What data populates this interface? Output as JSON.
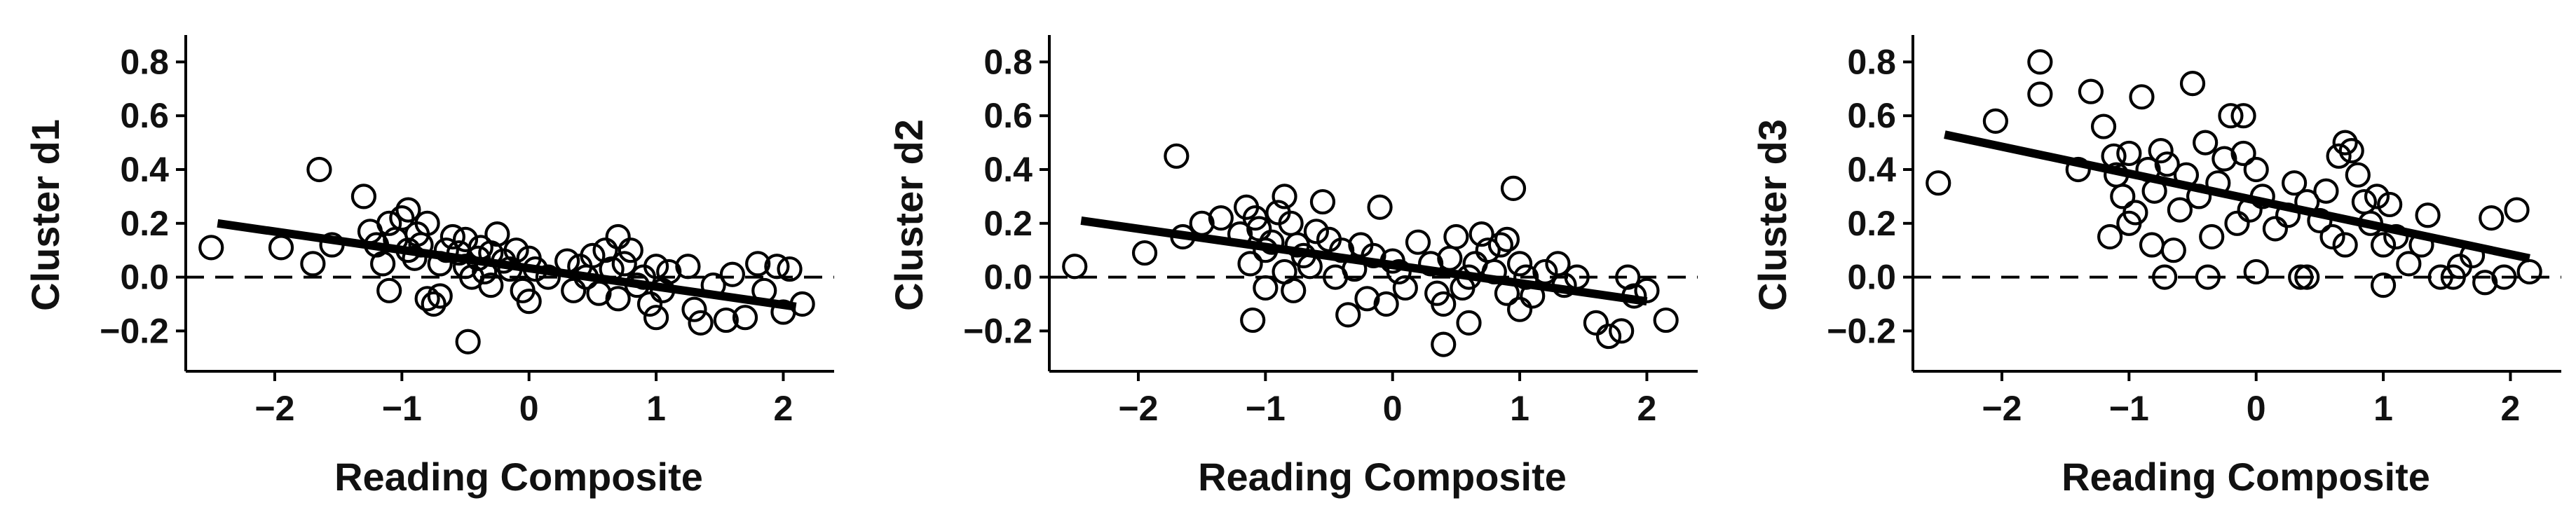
{
  "chart_data": [
    {
      "type": "scatter",
      "xlabel": "Reading Composite",
      "ylabel": "Cluster d1",
      "xlim": [
        -2.7,
        2.4
      ],
      "ylim": [
        -0.35,
        0.9
      ],
      "xticks": [
        -2,
        -1,
        0,
        1,
        2
      ],
      "xtick_labels": [
        "−2",
        "−1",
        "0",
        "1",
        "2"
      ],
      "yticks": [
        -0.2,
        0.0,
        0.2,
        0.4,
        0.6,
        0.8
      ],
      "ytick_labels": [
        "−0.2",
        "0.0",
        "0.2",
        "0.4",
        "0.6",
        "0.8"
      ],
      "reference_line_y": 0.0,
      "fit_line": {
        "x": [
          -2.45,
          2.1
        ],
        "y": [
          0.2,
          -0.11
        ]
      },
      "points": [
        [
          -2.5,
          0.11
        ],
        [
          -1.95,
          0.11
        ],
        [
          -1.7,
          0.05
        ],
        [
          -1.65,
          0.4
        ],
        [
          -1.55,
          0.12
        ],
        [
          -1.3,
          0.3
        ],
        [
          -1.25,
          0.17
        ],
        [
          -1.2,
          0.12
        ],
        [
          -1.15,
          0.05
        ],
        [
          -1.1,
          0.2
        ],
        [
          -1.1,
          -0.05
        ],
        [
          -1.05,
          0.14
        ],
        [
          -1.0,
          0.22
        ],
        [
          -0.95,
          0.1
        ],
        [
          -0.95,
          0.25
        ],
        [
          -0.9,
          0.07
        ],
        [
          -0.88,
          0.16
        ],
        [
          -0.85,
          0.12
        ],
        [
          -0.8,
          0.2
        ],
        [
          -0.8,
          -0.08
        ],
        [
          -0.75,
          -0.1
        ],
        [
          -0.7,
          -0.07
        ],
        [
          -0.7,
          0.05
        ],
        [
          -0.65,
          0.1
        ],
        [
          -0.6,
          0.15
        ],
        [
          -0.55,
          0.09
        ],
        [
          -0.5,
          0.04
        ],
        [
          -0.5,
          0.14
        ],
        [
          -0.48,
          -0.24
        ],
        [
          -0.45,
          0.0
        ],
        [
          -0.4,
          0.07
        ],
        [
          -0.38,
          0.11
        ],
        [
          -0.35,
          0.02
        ],
        [
          -0.3,
          0.09
        ],
        [
          -0.3,
          -0.03
        ],
        [
          -0.25,
          0.16
        ],
        [
          -0.2,
          0.06
        ],
        [
          -0.15,
          0.03
        ],
        [
          -0.1,
          0.1
        ],
        [
          -0.05,
          -0.05
        ],
        [
          0.0,
          0.07
        ],
        [
          0.0,
          -0.09
        ],
        [
          0.05,
          0.03
        ],
        [
          0.15,
          0.0
        ],
        [
          0.3,
          0.06
        ],
        [
          0.35,
          -0.05
        ],
        [
          0.4,
          0.04
        ],
        [
          0.45,
          0.0
        ],
        [
          0.5,
          0.08
        ],
        [
          0.55,
          -0.06
        ],
        [
          0.6,
          0.1
        ],
        [
          0.65,
          0.03
        ],
        [
          0.7,
          0.15
        ],
        [
          0.7,
          -0.08
        ],
        [
          0.75,
          0.05
        ],
        [
          0.8,
          0.1
        ],
        [
          0.85,
          -0.03
        ],
        [
          0.9,
          0.0
        ],
        [
          0.95,
          -0.1
        ],
        [
          1.0,
          0.04
        ],
        [
          1.0,
          -0.15
        ],
        [
          1.05,
          -0.05
        ],
        [
          1.1,
          0.02
        ],
        [
          1.25,
          0.04
        ],
        [
          1.3,
          -0.12
        ],
        [
          1.35,
          -0.17
        ],
        [
          1.45,
          -0.03
        ],
        [
          1.55,
          -0.16
        ],
        [
          1.6,
          0.01
        ],
        [
          1.7,
          -0.15
        ],
        [
          1.8,
          0.05
        ],
        [
          1.85,
          -0.05
        ],
        [
          1.95,
          0.04
        ],
        [
          2.0,
          -0.13
        ],
        [
          2.05,
          0.03
        ],
        [
          2.15,
          -0.1
        ]
      ]
    },
    {
      "type": "scatter",
      "xlabel": "Reading Composite",
      "ylabel": "Cluster d2",
      "xlim": [
        -2.7,
        2.4
      ],
      "ylim": [
        -0.35,
        0.9
      ],
      "xticks": [
        -2,
        -1,
        0,
        1,
        2
      ],
      "xtick_labels": [
        "−2",
        "−1",
        "0",
        "1",
        "2"
      ],
      "yticks": [
        -0.2,
        0.0,
        0.2,
        0.4,
        0.6,
        0.8
      ],
      "ytick_labels": [
        "−0.2",
        "0.0",
        "0.2",
        "0.4",
        "0.6",
        "0.8"
      ],
      "reference_line_y": 0.0,
      "fit_line": {
        "x": [
          -2.45,
          2.0
        ],
        "y": [
          0.21,
          -0.09
        ]
      },
      "points": [
        [
          -2.5,
          0.04
        ],
        [
          -1.95,
          0.09
        ],
        [
          -1.7,
          0.45
        ],
        [
          -1.65,
          0.15
        ],
        [
          -1.5,
          0.2
        ],
        [
          -1.35,
          0.22
        ],
        [
          -1.2,
          0.16
        ],
        [
          -1.15,
          0.26
        ],
        [
          -1.12,
          0.05
        ],
        [
          -1.1,
          -0.16
        ],
        [
          -1.08,
          0.22
        ],
        [
          -1.05,
          0.18
        ],
        [
          -1.0,
          0.1
        ],
        [
          -1.0,
          -0.04
        ],
        [
          -0.95,
          0.13
        ],
        [
          -0.9,
          0.24
        ],
        [
          -0.85,
          0.3
        ],
        [
          -0.85,
          0.02
        ],
        [
          -0.8,
          0.2
        ],
        [
          -0.78,
          -0.05
        ],
        [
          -0.75,
          0.12
        ],
        [
          -0.7,
          0.08
        ],
        [
          -0.65,
          0.04
        ],
        [
          -0.6,
          0.17
        ],
        [
          -0.55,
          0.28
        ],
        [
          -0.5,
          0.14
        ],
        [
          -0.45,
          0.0
        ],
        [
          -0.4,
          0.1
        ],
        [
          -0.35,
          -0.14
        ],
        [
          -0.3,
          0.03
        ],
        [
          -0.25,
          0.12
        ],
        [
          -0.2,
          -0.08
        ],
        [
          -0.15,
          0.08
        ],
        [
          -0.1,
          0.26
        ],
        [
          -0.05,
          -0.1
        ],
        [
          0.0,
          0.06
        ],
        [
          0.05,
          0.02
        ],
        [
          0.1,
          -0.04
        ],
        [
          0.2,
          0.13
        ],
        [
          0.3,
          0.05
        ],
        [
          0.35,
          -0.06
        ],
        [
          0.4,
          -0.1
        ],
        [
          0.4,
          -0.25
        ],
        [
          0.45,
          0.07
        ],
        [
          0.5,
          0.15
        ],
        [
          0.55,
          -0.04
        ],
        [
          0.6,
          -0.17
        ],
        [
          0.6,
          0.0
        ],
        [
          0.65,
          0.05
        ],
        [
          0.7,
          0.16
        ],
        [
          0.75,
          0.1
        ],
        [
          0.8,
          0.02
        ],
        [
          0.85,
          0.12
        ],
        [
          0.9,
          -0.06
        ],
        [
          0.9,
          0.14
        ],
        [
          0.95,
          0.33
        ],
        [
          1.0,
          0.05
        ],
        [
          1.0,
          -0.12
        ],
        [
          1.05,
          0.0
        ],
        [
          1.1,
          -0.07
        ],
        [
          1.2,
          0.02
        ],
        [
          1.3,
          0.05
        ],
        [
          1.35,
          -0.03
        ],
        [
          1.45,
          0.0
        ],
        [
          1.6,
          -0.17
        ],
        [
          1.7,
          -0.22
        ],
        [
          1.8,
          -0.2
        ],
        [
          1.85,
          0.0
        ],
        [
          1.9,
          -0.07
        ],
        [
          2.0,
          -0.05
        ],
        [
          2.15,
          -0.16
        ]
      ]
    },
    {
      "type": "scatter",
      "xlabel": "Reading Composite",
      "ylabel": "Cluster d3",
      "xlim": [
        -2.7,
        2.4
      ],
      "ylim": [
        -0.35,
        0.9
      ],
      "xticks": [
        -2,
        -1,
        0,
        1,
        2
      ],
      "xtick_labels": [
        "−2",
        "−1",
        "0",
        "1",
        "2"
      ],
      "yticks": [
        -0.2,
        0.0,
        0.2,
        0.4,
        0.6,
        0.8
      ],
      "ytick_labels": [
        "−0.2",
        "0.0",
        "0.2",
        "0.4",
        "0.6",
        "0.8"
      ],
      "reference_line_y": 0.0,
      "fit_line": {
        "x": [
          -2.45,
          2.15
        ],
        "y": [
          0.53,
          0.07
        ]
      },
      "points": [
        [
          -2.5,
          0.35
        ],
        [
          -2.05,
          0.58
        ],
        [
          -1.7,
          0.8
        ],
        [
          -1.7,
          0.68
        ],
        [
          -1.4,
          0.4
        ],
        [
          -1.3,
          0.69
        ],
        [
          -1.2,
          0.56
        ],
        [
          -1.15,
          0.15
        ],
        [
          -1.12,
          0.45
        ],
        [
          -1.1,
          0.38
        ],
        [
          -1.05,
          0.3
        ],
        [
          -1.0,
          0.46
        ],
        [
          -1.0,
          0.2
        ],
        [
          -0.95,
          0.24
        ],
        [
          -0.9,
          0.67
        ],
        [
          -0.85,
          0.4
        ],
        [
          -0.82,
          0.12
        ],
        [
          -0.8,
          0.32
        ],
        [
          -0.75,
          0.47
        ],
        [
          -0.72,
          0.0
        ],
        [
          -0.7,
          0.42
        ],
        [
          -0.65,
          0.1
        ],
        [
          -0.6,
          0.25
        ],
        [
          -0.55,
          0.38
        ],
        [
          -0.5,
          0.72
        ],
        [
          -0.45,
          0.3
        ],
        [
          -0.4,
          0.5
        ],
        [
          -0.38,
          0.0
        ],
        [
          -0.35,
          0.15
        ],
        [
          -0.3,
          0.35
        ],
        [
          -0.25,
          0.44
        ],
        [
          -0.2,
          0.6
        ],
        [
          -0.15,
          0.2
        ],
        [
          -0.1,
          0.46
        ],
        [
          -0.1,
          0.6
        ],
        [
          -0.05,
          0.25
        ],
        [
          0.0,
          0.02
        ],
        [
          0.0,
          0.4
        ],
        [
          0.05,
          0.3
        ],
        [
          0.15,
          0.18
        ],
        [
          0.25,
          0.23
        ],
        [
          0.3,
          0.35
        ],
        [
          0.35,
          0.0
        ],
        [
          0.4,
          0.0
        ],
        [
          0.4,
          0.28
        ],
        [
          0.5,
          0.21
        ],
        [
          0.55,
          0.32
        ],
        [
          0.6,
          0.15
        ],
        [
          0.65,
          0.45
        ],
        [
          0.7,
          0.5
        ],
        [
          0.7,
          0.12
        ],
        [
          0.75,
          0.47
        ],
        [
          0.8,
          0.38
        ],
        [
          0.85,
          0.28
        ],
        [
          0.9,
          0.2
        ],
        [
          0.95,
          0.3
        ],
        [
          1.0,
          0.12
        ],
        [
          1.0,
          -0.03
        ],
        [
          1.05,
          0.27
        ],
        [
          1.1,
          0.15
        ],
        [
          1.2,
          0.05
        ],
        [
          1.3,
          0.12
        ],
        [
          1.35,
          0.23
        ],
        [
          1.45,
          0.0
        ],
        [
          1.55,
          0.0
        ],
        [
          1.6,
          0.04
        ],
        [
          1.7,
          0.08
        ],
        [
          1.8,
          -0.02
        ],
        [
          1.85,
          0.22
        ],
        [
          1.95,
          0.0
        ],
        [
          2.05,
          0.25
        ],
        [
          2.15,
          0.02
        ]
      ]
    }
  ]
}
